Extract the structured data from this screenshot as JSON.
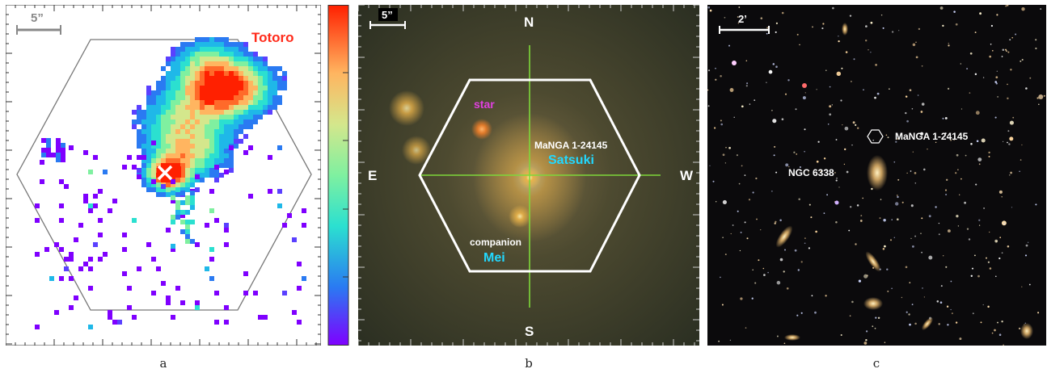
{
  "panel_a": {
    "scale_label": "5”",
    "object_name": "Totoro",
    "caption": "a",
    "colors": {
      "object_name": "#ff2a1a",
      "marker": "#ffffff",
      "hexagon": "#777777"
    }
  },
  "colorbar": {
    "colors": [
      "#7f00ff",
      "#2a7af2",
      "#2be0d0",
      "#7ff0a0",
      "#d4e78c",
      "#ffb560",
      "#ff2000"
    ]
  },
  "panel_b": {
    "scale_label": "5”",
    "north": "N",
    "south": "S",
    "east": "E",
    "west": "W",
    "star_label": "star",
    "target_id": "MaNGA 1-24145",
    "target_name": "Satsuki",
    "companion_label": "companion",
    "companion_name": "Mei",
    "caption": "b",
    "colors": {
      "star_label": "#e040e0",
      "name": "#22d8ff",
      "crosshair": "#7ed83a",
      "hexagon": "#ffffff"
    }
  },
  "panel_c": {
    "scale_label": "2’",
    "target_id": "MaNGA 1-24145",
    "cluster_label": "NGC 6338",
    "caption": "c"
  }
}
